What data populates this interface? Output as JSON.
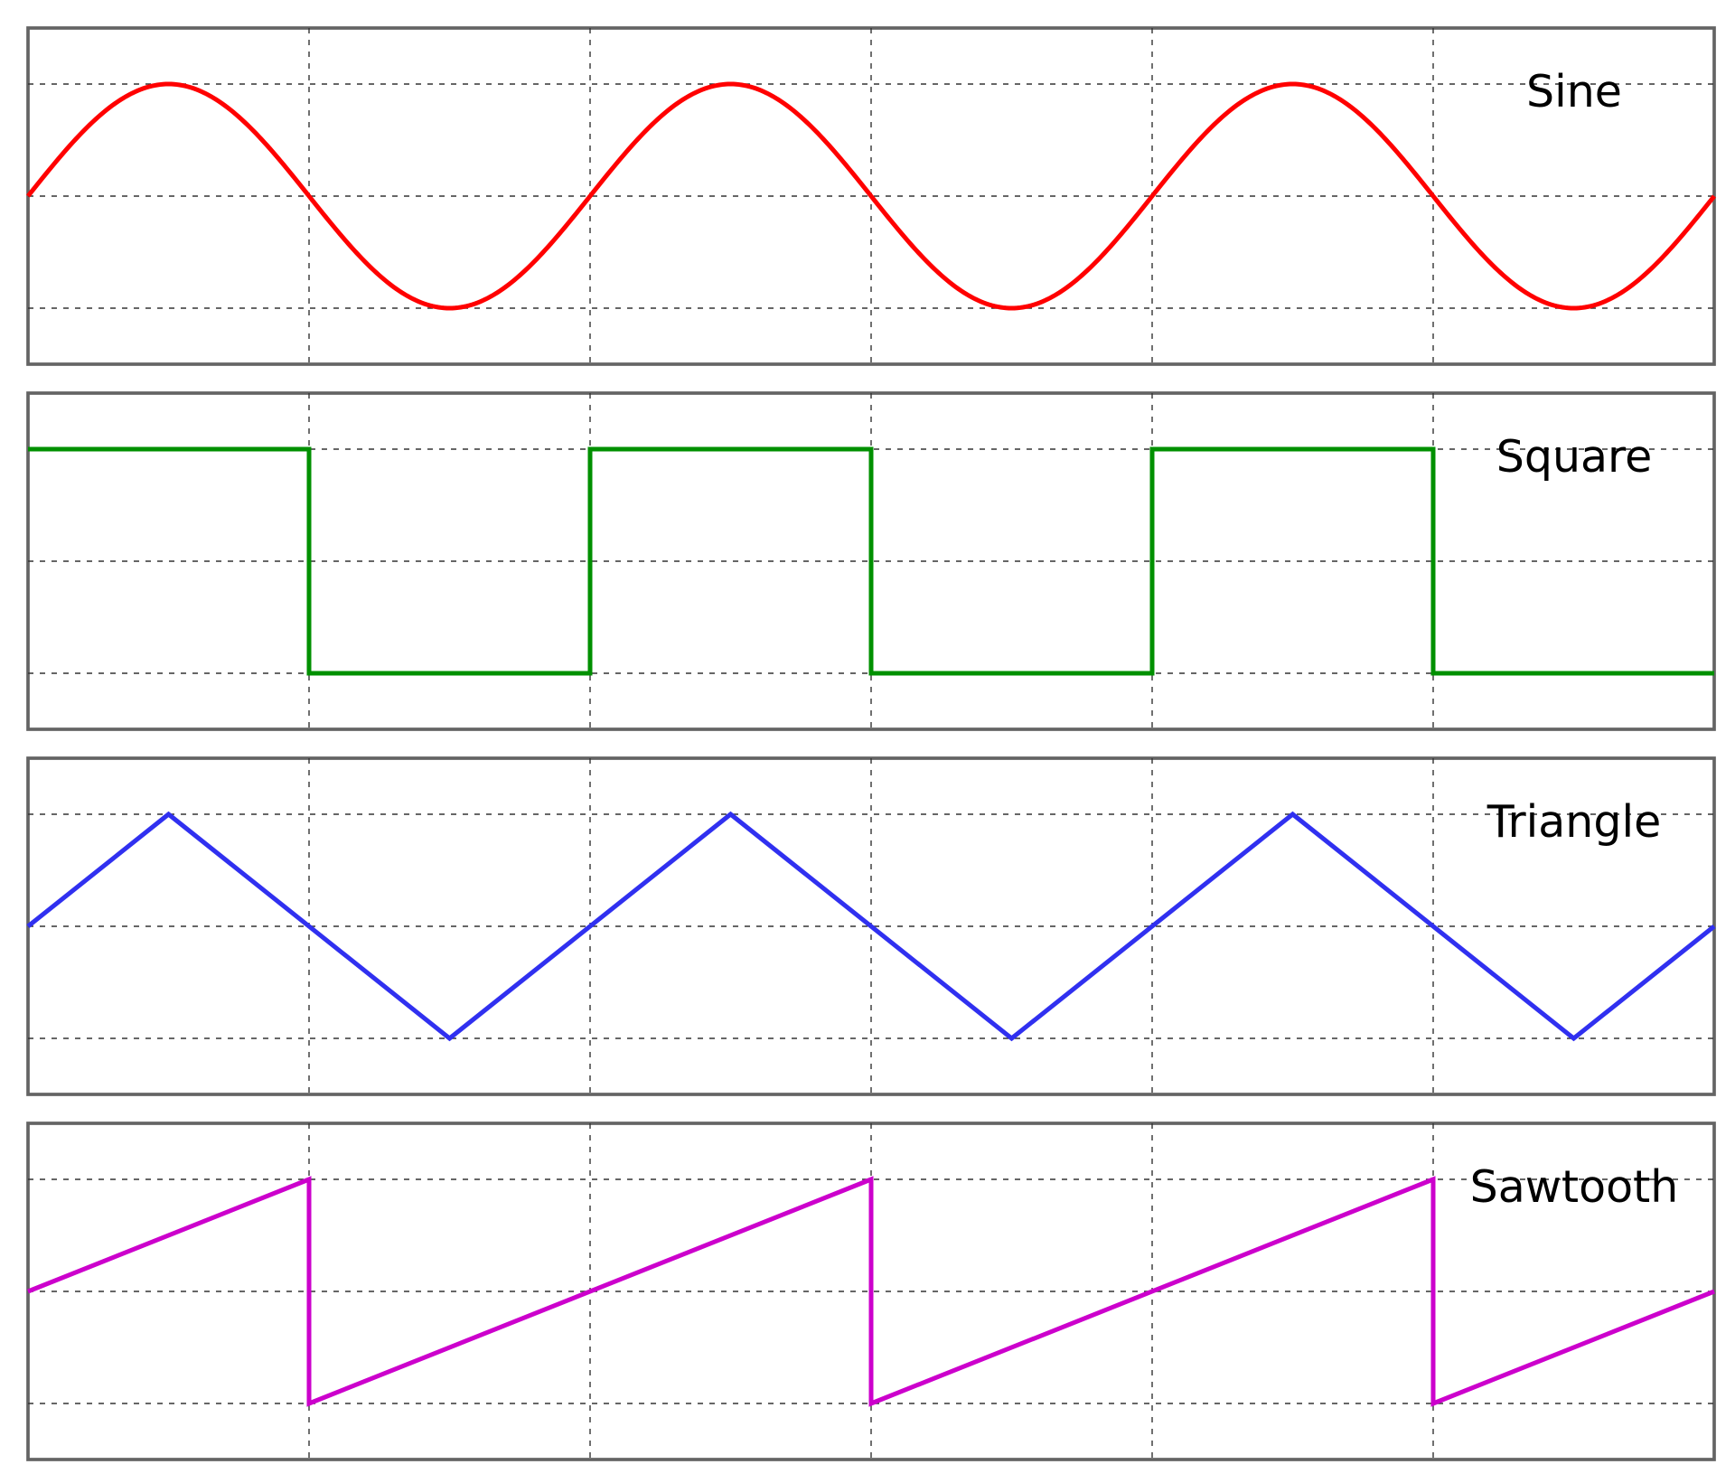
{
  "chart_data": [
    {
      "type": "line",
      "waveform": "sine",
      "label": "Sine",
      "color": "#ff0000",
      "xlim": [
        0,
        6
      ],
      "ylim": [
        -1.5,
        1.5
      ],
      "x_gridlines": [
        1,
        2,
        3,
        4,
        5
      ],
      "y_gridlines": [
        -1,
        0,
        1
      ],
      "period": 2,
      "amplitude": 1,
      "grid": true,
      "label_placement": "top-right"
    },
    {
      "type": "line",
      "waveform": "square",
      "label": "Square",
      "color": "#009000",
      "xlim": [
        0,
        6
      ],
      "ylim": [
        -1.5,
        1.5
      ],
      "x_gridlines": [
        1,
        2,
        3,
        4,
        5
      ],
      "y_gridlines": [
        -1,
        0,
        1
      ],
      "x": [
        0,
        1,
        1,
        2,
        2,
        3,
        3,
        4,
        4,
        5,
        5,
        6
      ],
      "y": [
        1,
        1,
        -1,
        -1,
        1,
        1,
        -1,
        -1,
        1,
        1,
        -1,
        -1
      ],
      "grid": true,
      "label_placement": "top-right"
    },
    {
      "type": "line",
      "waveform": "triangle",
      "label": "Triangle",
      "color": "#3030f0",
      "xlim": [
        0,
        6
      ],
      "ylim": [
        -1.5,
        1.5
      ],
      "x_gridlines": [
        1,
        2,
        3,
        4,
        5
      ],
      "y_gridlines": [
        -1,
        0,
        1
      ],
      "x": [
        0,
        0.5,
        1.5,
        2.5,
        3.5,
        4.5,
        5.5,
        6
      ],
      "y": [
        0,
        1,
        -1,
        1,
        -1,
        1,
        -1,
        0
      ],
      "grid": true,
      "label_placement": "top-right"
    },
    {
      "type": "line",
      "waveform": "sawtooth",
      "label": "Sawtooth",
      "color": "#cc00cc",
      "xlim": [
        0,
        6
      ],
      "ylim": [
        -1.5,
        1.5
      ],
      "x_gridlines": [
        1,
        2,
        3,
        4,
        5
      ],
      "y_gridlines": [
        -1,
        0,
        1
      ],
      "x": [
        0,
        1,
        1,
        3,
        3,
        5,
        5,
        6
      ],
      "y": [
        0,
        1,
        -1,
        1,
        -1,
        1,
        -1,
        -0.0
      ],
      "grid": true,
      "label_placement": "top-right"
    }
  ]
}
